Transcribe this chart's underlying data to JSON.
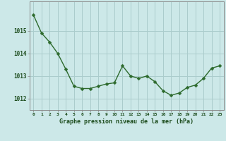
{
  "hours": [
    0,
    1,
    2,
    3,
    4,
    5,
    6,
    7,
    8,
    9,
    10,
    11,
    12,
    13,
    14,
    15,
    16,
    17,
    18,
    19,
    20,
    21,
    22,
    23
  ],
  "pressure": [
    1015.7,
    1014.9,
    1014.5,
    1014.0,
    1013.3,
    1012.55,
    1012.45,
    1012.45,
    1012.55,
    1012.65,
    1012.7,
    1013.45,
    1013.0,
    1012.9,
    1013.0,
    1012.75,
    1012.35,
    1012.15,
    1012.25,
    1012.5,
    1012.6,
    1012.9,
    1013.35,
    1013.45
  ],
  "line_color": "#2d6a2d",
  "marker": "D",
  "marker_size": 2.5,
  "bg_color": "#cce8e8",
  "grid_color": "#aacccc",
  "axis_color": "#888888",
  "xlabel": "Graphe pression niveau de la mer (hPa)",
  "xlabel_color": "#1a4a1a",
  "tick_label_color": "#1a4a1a",
  "ylim": [
    1011.5,
    1016.3
  ],
  "yticks": [
    1012,
    1013,
    1014,
    1015
  ],
  "xlim": [
    -0.5,
    23.5
  ]
}
